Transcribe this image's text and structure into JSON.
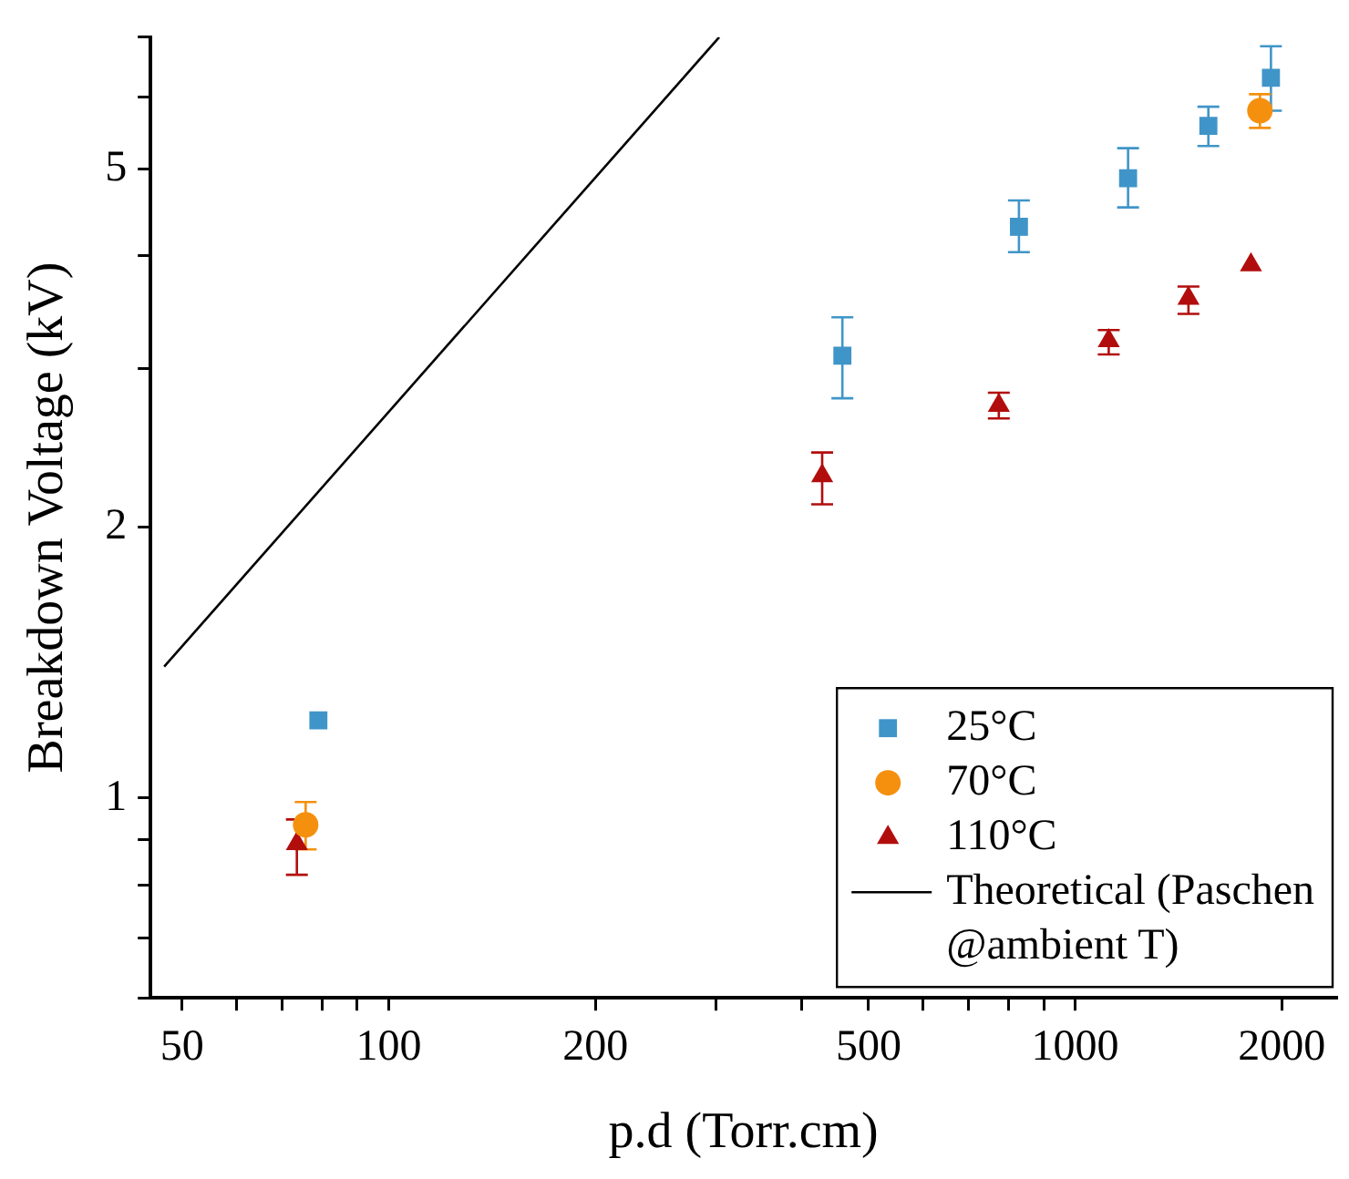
{
  "chart_data": {
    "type": "scatter",
    "xlabel": "p.d (Torr.cm)",
    "ylabel": "Breakdown Voltage (kV)",
    "log": "xy",
    "grid": false,
    "legend": "bottom right",
    "xlim": [
      45,
      2400
    ],
    "ylim": [
      0.6,
      7
    ],
    "xticks": [
      50,
      {
        "value": 60,
        "label": null
      },
      {
        "value": 70,
        "label": null
      },
      {
        "value": 80,
        "label": null
      },
      {
        "value": 90,
        "label": null
      },
      100,
      200,
      {
        "value": 300,
        "label": null
      },
      {
        "value": 400,
        "label": null
      },
      500,
      {
        "value": 600,
        "label": null
      },
      {
        "value": 700,
        "label": null
      },
      {
        "value": 800,
        "label": null
      },
      {
        "value": 900,
        "label": null
      },
      1000,
      2000
    ],
    "yticks": [
      {
        "value": 0.6,
        "label": null
      },
      {
        "value": 0.7,
        "label": null
      },
      {
        "value": 0.8,
        "label": null
      },
      {
        "value": 0.9,
        "label": null
      },
      1,
      2,
      {
        "value": 3,
        "label": null
      },
      {
        "value": 4,
        "label": null
      },
      5,
      {
        "value": 6,
        "label": null
      },
      {
        "value": 7,
        "label": null
      }
    ],
    "series": [
      {
        "name": "25°C",
        "marker": "square",
        "color": "#4095c8",
        "x": [
          79,
          458,
          828,
          1194,
          1563,
          1928
        ],
        "values": [
          1.22,
          3.1,
          4.31,
          4.88,
          5.58,
          6.31
        ],
        "errors": [
          null,
          [
            2.78,
            3.42
          ],
          [
            4.04,
            4.61
          ],
          [
            4.53,
            5.27
          ],
          [
            5.3,
            5.86
          ],
          [
            5.8,
            6.84
          ]
        ]
      },
      {
        "name": "70°C",
        "marker": "circle",
        "color": "#f5900f",
        "x": [
          75.7,
          1858
        ],
        "values": [
          0.934,
          5.8
        ],
        "errors": [
          [
            0.877,
            0.99
          ],
          [
            5.55,
            6.05
          ]
        ]
      },
      {
        "name": "110°C",
        "marker": "triangle",
        "color": "#b20d0d",
        "x": [
          73.5,
          428,
          774,
          1119,
          1462,
          1803
        ],
        "values": [
          0.89,
          2.28,
          2.73,
          3.22,
          3.59,
          3.91
        ],
        "errors": [
          [
            0.822,
            0.947
          ],
          [
            2.12,
            2.42
          ],
          [
            2.64,
            2.82
          ],
          [
            3.11,
            3.31
          ],
          [
            3.45,
            3.7
          ],
          null
        ]
      },
      {
        "name": "Theoretical (Paschen @ambient T)",
        "type": "line",
        "marker": "none",
        "line_style": "solid",
        "color": "#000000",
        "x": [
          47.1,
          303
        ],
        "values": [
          1.4,
          7.0
        ]
      }
    ]
  }
}
